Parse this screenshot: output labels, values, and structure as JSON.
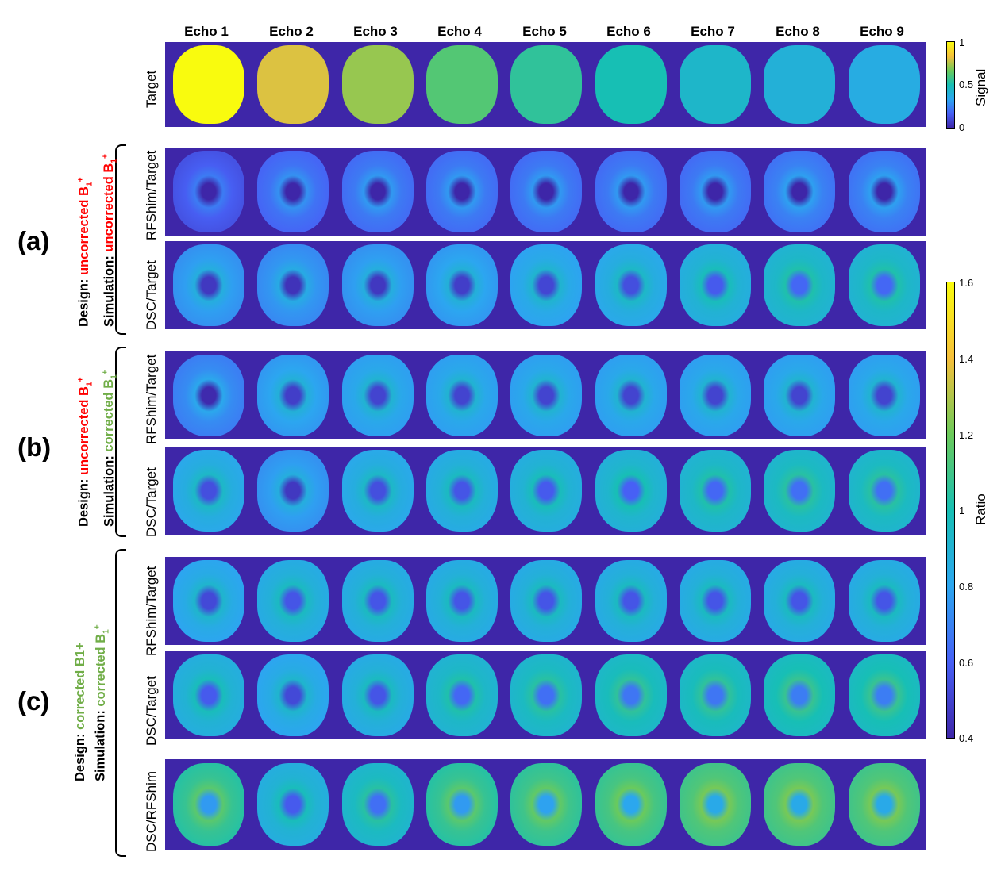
{
  "columns": [
    "Echo 1",
    "Echo 2",
    "Echo 3",
    "Echo 4",
    "Echo 5",
    "Echo 6",
    "Echo 7",
    "Echo 8",
    "Echo 9"
  ],
  "row_labels": {
    "target": "Target",
    "rfshim_target": "RFShim/Target",
    "dsc_target": "DSC/Target",
    "dsc_rfshim": "DSC/RFShim"
  },
  "groups": {
    "a": {
      "label": "(a)",
      "design_prefix": "Design: ",
      "design_value": "uncorrected B",
      "simulation_prefix": "Simulation: ",
      "simulation_value": "uncorrected B"
    },
    "b": {
      "label": "(b)",
      "design_prefix": "Design: ",
      "design_value": "uncorrected B",
      "simulation_prefix": "Simulation: ",
      "simulation_value": "corrected B"
    },
    "c": {
      "label": "(c)",
      "design_prefix": "Design: ",
      "design_value": "corrected B1+",
      "simulation_prefix": "Simulation: ",
      "simulation_value": "corrected B"
    }
  },
  "b1": {
    "sub": "1",
    "sup": "+"
  },
  "colorbar_signal": {
    "label": "Signal",
    "ticks": [
      "1",
      "0.5",
      "0"
    ],
    "range": [
      0,
      1
    ]
  },
  "colorbar_ratio": {
    "label": "Ratio",
    "ticks": [
      "1.6",
      "1.4",
      "1.2",
      "1",
      "0.8",
      "0.6",
      "0.4"
    ],
    "range": [
      0.4,
      1.6
    ]
  },
  "colors": {
    "red": "#ff0000",
    "green": "#70ad47",
    "background": "#3e26a8"
  },
  "image_values": {
    "target": [
      1.0,
      0.8,
      0.72,
      0.62,
      0.55,
      0.5,
      0.44,
      0.4,
      0.37
    ],
    "a_rfshim_target": [
      0.62,
      0.68,
      0.7,
      0.7,
      0.7,
      0.7,
      0.7,
      0.72,
      0.72
    ],
    "a_dsc_target": [
      0.8,
      0.78,
      0.8,
      0.82,
      0.85,
      0.88,
      0.92,
      0.96,
      0.96
    ],
    "b_rfshim_target": [
      0.75,
      0.82,
      0.84,
      0.84,
      0.84,
      0.84,
      0.84,
      0.84,
      0.84
    ],
    "b_dsc_target": [
      0.88,
      0.8,
      0.88,
      0.9,
      0.92,
      0.94,
      0.96,
      0.98,
      0.98
    ],
    "c_rfshim_target": [
      0.86,
      0.9,
      0.9,
      0.9,
      0.9,
      0.9,
      0.9,
      0.9,
      0.9
    ],
    "c_dsc_target": [
      0.92,
      0.86,
      0.9,
      0.96,
      0.98,
      1.0,
      1.0,
      1.02,
      1.02
    ],
    "c_dsc_rfshim": [
      1.1,
      0.92,
      0.98,
      1.1,
      1.12,
      1.14,
      1.16,
      1.16,
      1.16
    ]
  }
}
